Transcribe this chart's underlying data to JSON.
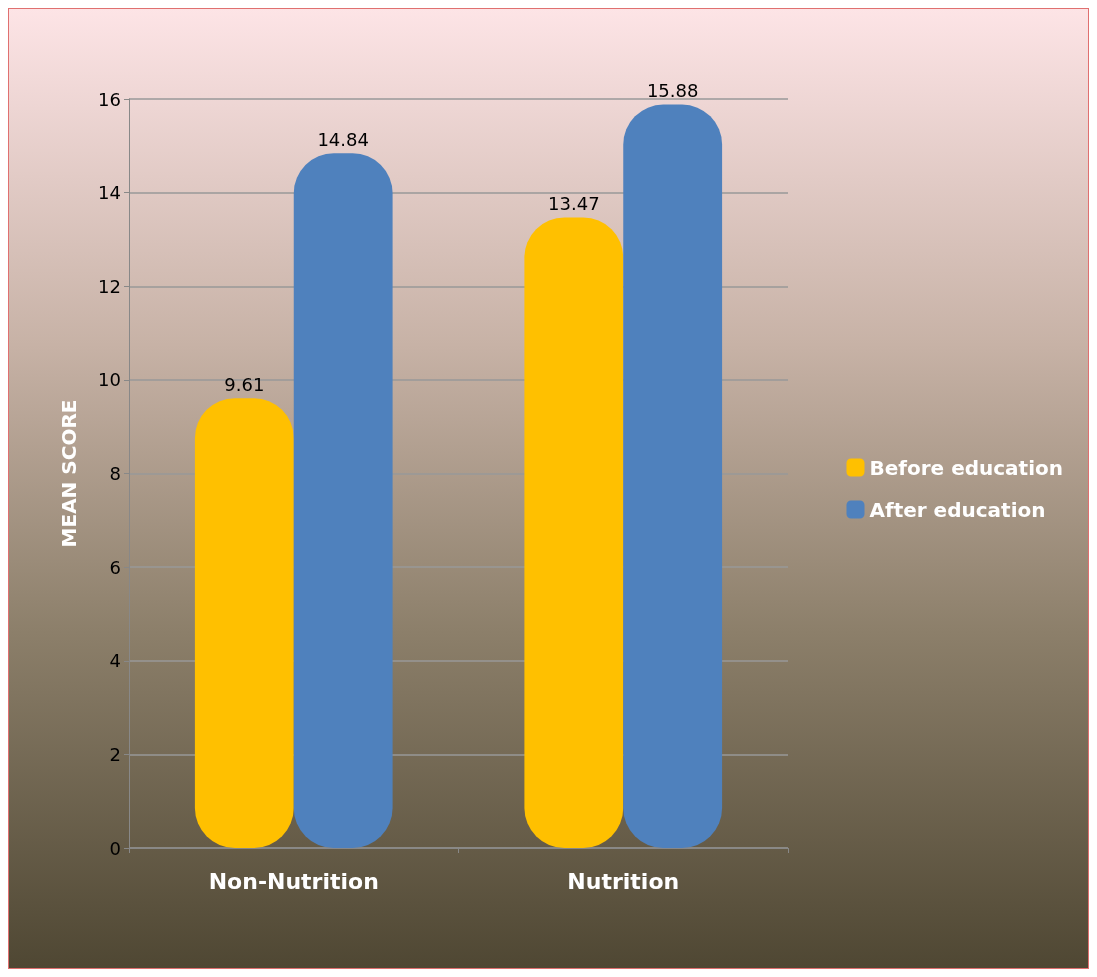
{
  "chart_data": {
    "type": "bar",
    "ylabel": "MEAN SCORE",
    "categories": [
      "Non-Nutrition",
      "Nutrition"
    ],
    "series": [
      {
        "name": "Before education",
        "color": "#ffc000",
        "values": [
          9.61,
          13.47
        ]
      },
      {
        "name": "After education",
        "color": "#4f81bd",
        "values": [
          14.84,
          15.88
        ]
      }
    ],
    "ylim": [
      0,
      16
    ],
    "yticks": [
      0,
      2,
      4,
      6,
      8,
      10,
      12,
      14,
      16
    ],
    "grid": "y",
    "legend": "right",
    "data_labels": true
  }
}
